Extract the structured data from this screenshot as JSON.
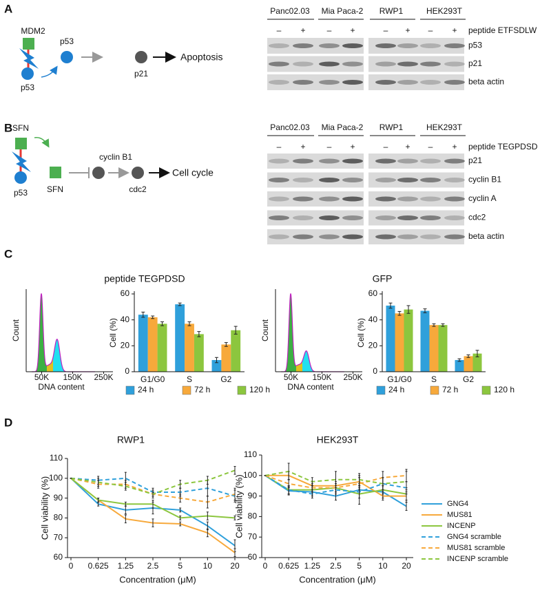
{
  "panel_a": {
    "label": "A",
    "diagram": {
      "mdm2": "MDM2",
      "p53_bound": "p53",
      "p53_free": "p53",
      "p21": "p21",
      "outcome": "Apoptosis"
    },
    "blot": {
      "cell_lines": [
        "Panc02.03",
        "Mia Paca-2",
        "RWP1",
        "HEK293T"
      ],
      "minus": "–",
      "plus": "+",
      "treatment": "peptide ETFSDLW",
      "proteins": [
        "p53",
        "p21",
        "beta actin"
      ]
    }
  },
  "panel_b": {
    "label": "B",
    "diagram": {
      "sfn_bound": "SFN",
      "p53": "p53",
      "sfn_free": "SFN",
      "cyclin_b1": "cyclin B1",
      "cdc2": "cdc2",
      "outcome": "Cell cycle"
    },
    "blot": {
      "cell_lines": [
        "Panc02.03",
        "Mia Paca-2",
        "RWP1",
        "HEK293T"
      ],
      "minus": "–",
      "plus": "+",
      "treatment": "peptide TEGPDSD",
      "proteins": [
        "p21",
        "cyclin B1",
        "cyclin A",
        "cdc2",
        "beta actin"
      ]
    }
  },
  "panel_c": {
    "label": "C",
    "histograms": [
      {
        "ylabel": "Count",
        "xlabel": "DNA content",
        "xlim": [
          0,
          280000
        ],
        "xticks": [
          {
            "value": 50000,
            "label": "50K"
          },
          {
            "value": 150000,
            "label": "150K"
          },
          {
            "value": 250000,
            "label": "250K"
          }
        ]
      },
      {
        "ylabel": "Count",
        "xlabel": "DNA content",
        "xlim": [
          0,
          280000
        ],
        "xticks": [
          {
            "value": 50000,
            "label": "50K"
          },
          {
            "value": 150000,
            "label": "150K"
          },
          {
            "value": 250000,
            "label": "250K"
          }
        ]
      }
    ]
  },
  "panel_d": {
    "label": "D"
  },
  "chart_data": [
    {
      "type": "bar",
      "title": "peptide TEGPDSD",
      "ylabel": "Cell (%)",
      "categories": [
        "G1/G0",
        "S",
        "G2"
      ],
      "series": [
        {
          "name": "24 h",
          "color": "#2fa0db",
          "values": [
            44,
            52,
            9
          ],
          "errors": [
            2,
            1,
            2
          ]
        },
        {
          "name": "72 h",
          "color": "#f7a93b",
          "values": [
            42,
            37,
            21
          ],
          "errors": [
            1,
            1.5,
            1.5
          ]
        },
        {
          "name": "120 h",
          "color": "#8cc63e",
          "values": [
            37,
            29,
            32
          ],
          "errors": [
            1.5,
            2,
            3
          ]
        }
      ],
      "ylim": [
        0,
        60
      ],
      "yticks": [
        0,
        20,
        40,
        60
      ],
      "legend": "bottom"
    },
    {
      "type": "bar",
      "title": "GFP",
      "ylabel": "Cell (%)",
      "categories": [
        "G1/G0",
        "S",
        "G2"
      ],
      "series": [
        {
          "name": "24 h",
          "color": "#2fa0db",
          "values": [
            51,
            47,
            9
          ],
          "errors": [
            2,
            1.5,
            1
          ]
        },
        {
          "name": "72 h",
          "color": "#f7a93b",
          "values": [
            45,
            36,
            12
          ],
          "errors": [
            1.5,
            1,
            1
          ]
        },
        {
          "name": "120 h",
          "color": "#8cc63e",
          "values": [
            48,
            36,
            14
          ],
          "errors": [
            3,
            1,
            2.5
          ]
        }
      ],
      "ylim": [
        0,
        60
      ],
      "yticks": [
        0,
        20,
        40,
        60
      ],
      "legend": "bottom"
    },
    {
      "type": "line",
      "title": "RWP1",
      "ylabel": "Cell viability (%)",
      "xlabel": "Concentration (μM)",
      "categories": [
        "0",
        "0.625",
        "1.25",
        "2.5",
        "5",
        "10",
        "20"
      ],
      "series": [
        {
          "color": "#2fa0db",
          "dash": false,
          "values": [
            100,
            87,
            84,
            85,
            84,
            76,
            66
          ],
          "errors": [
            0,
            1,
            2,
            3,
            1,
            2,
            3
          ]
        },
        {
          "color": "#f7a93b",
          "dash": false,
          "values": [
            100,
            89,
            79.5,
            77.5,
            77,
            72.5,
            62.5
          ],
          "errors": [
            0,
            1,
            2,
            2,
            1,
            2,
            2
          ]
        },
        {
          "color": "#8cc63e",
          "dash": false,
          "values": [
            100,
            89,
            87,
            87,
            80,
            81,
            80
          ],
          "errors": [
            0,
            1,
            1,
            2,
            1,
            2,
            1
          ]
        },
        {
          "color": "#2fa0db",
          "dash": true,
          "values": [
            100,
            99,
            100,
            93,
            93,
            95,
            91
          ],
          "errors": [
            0,
            2,
            3,
            2,
            2,
            4,
            3
          ]
        },
        {
          "color": "#f7a93b",
          "dash": true,
          "values": [
            100,
            97,
            97,
            92,
            90,
            88,
            92
          ],
          "errors": [
            0,
            2,
            2,
            2,
            2,
            3,
            3
          ]
        },
        {
          "color": "#8cc63e",
          "dash": true,
          "values": [
            100,
            98,
            96,
            92,
            97,
            99,
            104
          ],
          "errors": [
            0,
            2,
            2,
            1,
            2,
            2,
            2
          ]
        }
      ],
      "ylim": [
        60,
        110
      ],
      "yticks": [
        60,
        70,
        80,
        90,
        100,
        110
      ]
    },
    {
      "type": "line",
      "title": "HEK293T",
      "ylabel": "Cell viability (%)",
      "xlabel": "Concentration (μM)",
      "categories": [
        "0",
        "0.625",
        "1.25",
        "2.5",
        "5",
        "10",
        "20"
      ],
      "series": [
        {
          "name": "GNG4",
          "color": "#2fa0db",
          "dash": false,
          "values": [
            100,
            92.5,
            92,
            90,
            93,
            92,
            85
          ],
          "errors": [
            0,
            2,
            2,
            2,
            2,
            3,
            2
          ]
        },
        {
          "name": "MUS81",
          "color": "#f7a93b",
          "dash": false,
          "values": [
            100,
            100,
            95,
            95,
            97,
            90,
            90
          ],
          "errors": [
            0,
            2,
            2,
            2,
            3,
            2,
            3
          ]
        },
        {
          "name": "INCENP",
          "color": "#8cc63e",
          "dash": false,
          "values": [
            100,
            93,
            93,
            94,
            91,
            93,
            91
          ],
          "errors": [
            0,
            2,
            2,
            2,
            5,
            2,
            3
          ]
        },
        {
          "name": "GNG4 scramble",
          "color": "#2fa0db",
          "dash": true,
          "values": [
            100,
            93,
            91,
            93,
            92,
            96,
            94
          ],
          "errors": [
            0,
            2,
            2,
            2,
            3,
            3,
            3
          ]
        },
        {
          "name": "MUS81 scramble",
          "color": "#f7a93b",
          "dash": true,
          "values": [
            100,
            96,
            94,
            94,
            96,
            99,
            100
          ],
          "errors": [
            0,
            2,
            2,
            2,
            3,
            3,
            3
          ]
        },
        {
          "name": "INCENP scramble",
          "color": "#8cc63e",
          "dash": true,
          "values": [
            100,
            102,
            97,
            98,
            98,
            96,
            97
          ],
          "errors": [
            0,
            4,
            2,
            4,
            3,
            3,
            5
          ]
        }
      ],
      "ylim": [
        60,
        110
      ],
      "yticks": [
        60,
        70,
        80,
        90,
        100,
        110
      ],
      "legend": "right"
    }
  ]
}
